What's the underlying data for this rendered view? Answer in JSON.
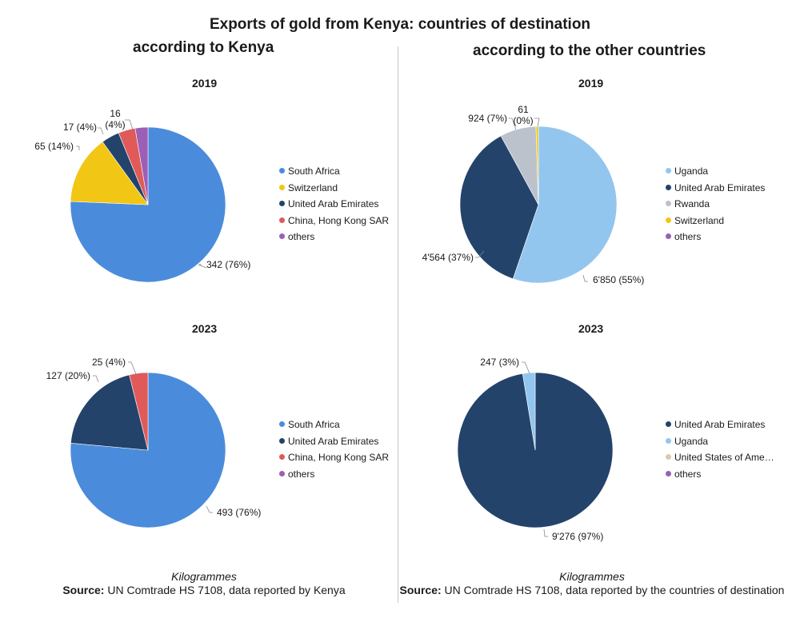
{
  "title": "Exports of gold from Kenya: countries of destination",
  "subtitle_left": "according to Kenya",
  "subtitle_right": "according to the other countries",
  "footer_left": {
    "unit": "Kilogrammes",
    "source_label": "Source:",
    "source_text": "UN Comtrade HS 7108, data reported by Kenya"
  },
  "footer_right": {
    "unit": "Kilogrammes",
    "source_label": "Source:",
    "source_text": "UN Comtrade HS 7108, data reported by the countries of destination"
  },
  "chart_data": [
    {
      "type": "pie",
      "title": "2019",
      "panel": "according to Kenya",
      "slices": [
        {
          "label": "South Africa",
          "value": 342,
          "display": "342 (76%)",
          "color": "#4A8CDB"
        },
        {
          "label": "Switzerland",
          "value": 65,
          "display": "65 (14%)",
          "color": "#F2C614"
        },
        {
          "label": "United Arab Emirates",
          "value": 17,
          "display": "17 (4%)",
          "color": "#23436B"
        },
        {
          "label": "China, Hong Kong SAR",
          "value": 16,
          "display": "16 (4%)",
          "color": "#E05A5A"
        },
        {
          "label": "others",
          "value": 12,
          "display": "",
          "color": "#9B5FB5"
        }
      ]
    },
    {
      "type": "pie",
      "title": "2019",
      "panel": "according to the other countries",
      "slices": [
        {
          "label": "Uganda",
          "value": 6850,
          "display": "6'850 (55%)",
          "color": "#93C6EE"
        },
        {
          "label": "United Arab Emirates",
          "value": 4564,
          "display": "4'564 (37%)",
          "color": "#23436B"
        },
        {
          "label": "Rwanda",
          "value": 924,
          "display": "924 (7%)",
          "color": "#BBC2CC"
        },
        {
          "label": "Switzerland",
          "value": 61,
          "display": "61 (0%)",
          "color": "#F2C614"
        },
        {
          "label": "others",
          "value": 0,
          "display": "",
          "color": "#9B5FB5"
        }
      ]
    },
    {
      "type": "pie",
      "title": "2023",
      "panel": "according to Kenya",
      "slices": [
        {
          "label": "South Africa",
          "value": 493,
          "display": "493 (76%)",
          "color": "#4A8CDB"
        },
        {
          "label": "United Arab Emirates",
          "value": 127,
          "display": "127 (20%)",
          "color": "#23436B"
        },
        {
          "label": "China, Hong Kong SAR",
          "value": 25,
          "display": "25 (4%)",
          "color": "#E05A5A"
        },
        {
          "label": "others",
          "value": 0,
          "display": "",
          "color": "#9B5FB5"
        }
      ]
    },
    {
      "type": "pie",
      "title": "2023",
      "panel": "according to the other countries",
      "slices": [
        {
          "label": "United Arab Emirates",
          "value": 9276,
          "display": "9'276 (97%)",
          "color": "#23436B"
        },
        {
          "label": "Uganda",
          "value": 247,
          "display": "247 (3%)",
          "color": "#93C6EE"
        },
        {
          "label": "United States of Ame…",
          "value": 0,
          "display": "",
          "color": "#D9CBB0"
        },
        {
          "label": "others",
          "value": 0,
          "display": "",
          "color": "#9B5FB5"
        }
      ]
    }
  ]
}
